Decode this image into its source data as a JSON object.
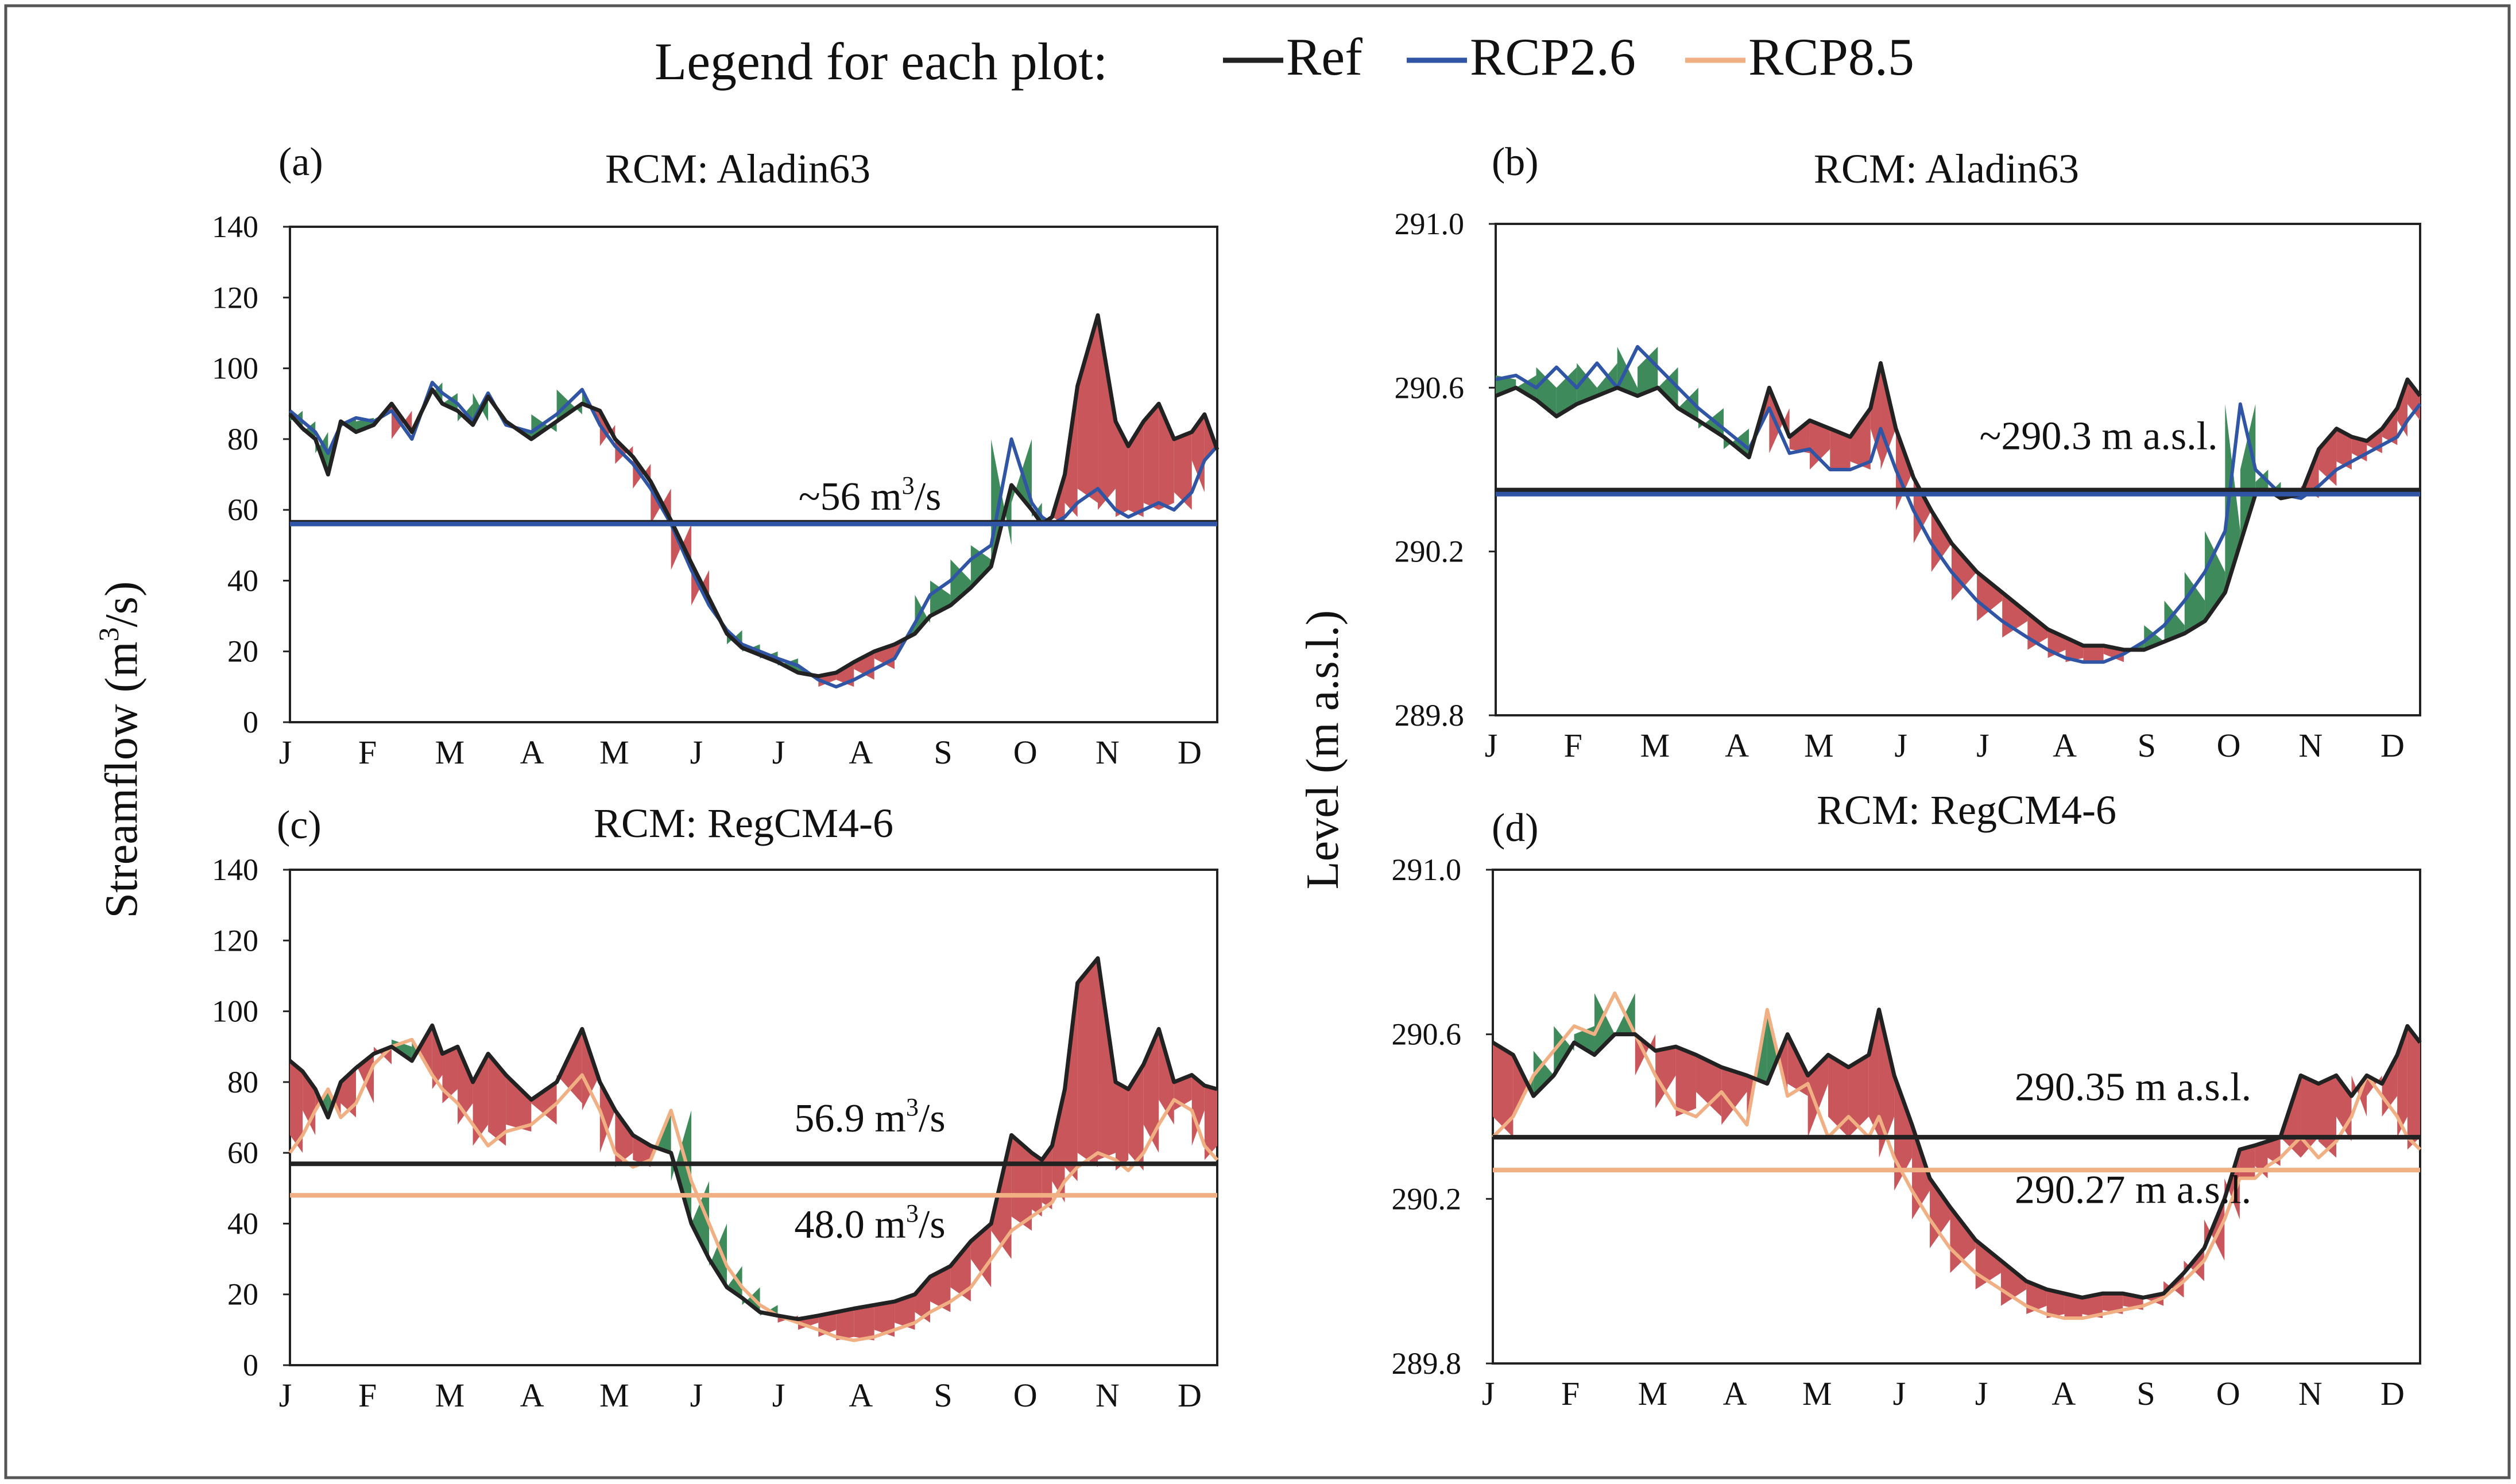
{
  "legend": {
    "title": "Legend for each plot:",
    "entries": [
      {
        "label": "Ref",
        "color": "#222222"
      },
      {
        "label": "RCP2.6",
        "color": "#2f55a4"
      },
      {
        "label": "RCP8.5",
        "color": "#f1b084"
      }
    ]
  },
  "y_labels": {
    "streamflow_main": "Streamflow (m",
    "streamflow_sup": "3",
    "streamflow_end": "/s)",
    "level": "Level (m a.s.l.)"
  },
  "months": [
    "J",
    "F",
    "M",
    "A",
    "M",
    "J",
    "J",
    "A",
    "S",
    "O",
    "N",
    "D"
  ],
  "fill_colors": {
    "above": "#c8565a",
    "below": "#3f8a5b"
  },
  "chart_data": [
    {
      "id": "a",
      "panel_label": "(a)",
      "title": "RCM: Aladin63",
      "type": "line",
      "quantity": "streamflow",
      "ylim": [
        0,
        140
      ],
      "yticks": [
        "0",
        "20",
        "40",
        "60",
        "80",
        "100",
        "120",
        "140"
      ],
      "xlabel": "",
      "ylabel": "Streamflow (m3/s)",
      "scenario": "RCP2.6",
      "annotations": [
        {
          "pre": "~56 m",
          "sup": "3",
          "post": "/s",
          "y": 60
        }
      ],
      "hlines": [
        {
          "series": "Ref",
          "value": 56.5
        },
        {
          "series": "RCP2.6",
          "value": 56.0
        }
      ],
      "x": [
        0,
        5,
        10,
        15,
        20,
        26,
        33,
        40,
        48,
        56,
        60,
        66,
        72,
        78,
        85,
        95,
        105,
        115,
        122,
        128,
        135,
        142,
        150,
        158,
        165,
        172,
        178,
        185,
        192,
        200,
        208,
        215,
        222,
        230,
        238,
        246,
        252,
        260,
        268,
        276,
        284,
        292,
        296,
        300,
        305,
        310,
        318,
        325,
        330,
        336,
        342,
        348,
        355,
        360,
        365
      ],
      "series": [
        {
          "name": "Ref",
          "values": [
            87,
            83,
            80,
            70,
            85,
            82,
            84,
            90,
            82,
            94,
            90,
            88,
            84,
            92,
            85,
            80,
            85,
            90,
            88,
            80,
            75,
            68,
            57,
            45,
            35,
            25,
            21,
            19,
            17,
            14,
            13,
            14,
            17,
            20,
            22,
            25,
            30,
            33,
            38,
            44,
            67,
            60,
            56,
            58,
            70,
            95,
            115,
            85,
            78,
            85,
            90,
            80,
            82,
            87,
            77
          ]
        },
        {
          "name": "RCP2.6",
          "values": [
            88,
            85,
            82,
            76,
            84,
            86,
            85,
            88,
            80,
            96,
            93,
            90,
            85,
            93,
            84,
            82,
            87,
            94,
            84,
            78,
            73,
            66,
            56,
            43,
            33,
            26,
            22,
            20,
            18,
            16,
            12,
            10,
            12,
            15,
            18,
            28,
            36,
            40,
            46,
            50,
            80,
            62,
            58,
            56,
            58,
            62,
            66,
            60,
            58,
            60,
            62,
            60,
            65,
            74,
            78
          ]
        }
      ]
    },
    {
      "id": "b",
      "panel_label": "(b)",
      "title": "RCM: Aladin63",
      "type": "line",
      "quantity": "level",
      "ylim": [
        289.8,
        291.0
      ],
      "yticks": [
        "289.8",
        "290.2",
        "290.6",
        "291.0"
      ],
      "xlabel": "",
      "ylabel": "Level (m a.s.l.)",
      "scenario": "RCP2.6",
      "annotations": [
        {
          "pre": "~290.3 m a.s.l.",
          "sup": "",
          "post": "",
          "y": 290.45
        }
      ],
      "hlines": [
        {
          "series": "Ref",
          "value": 290.35
        },
        {
          "series": "RCP2.6",
          "value": 290.34
        }
      ],
      "x": [
        0,
        8,
        16,
        24,
        32,
        40,
        48,
        56,
        64,
        72,
        80,
        90,
        100,
        108,
        116,
        124,
        132,
        140,
        148,
        152,
        158,
        165,
        172,
        180,
        190,
        200,
        210,
        218,
        225,
        232,
        240,
        248,
        256,
        264,
        272,
        280,
        288,
        294,
        300,
        305,
        310,
        318,
        325,
        332,
        338,
        344,
        350,
        356,
        360,
        365
      ],
      "series": [
        {
          "name": "Ref",
          "values": [
            290.58,
            290.6,
            290.57,
            290.53,
            290.56,
            290.58,
            290.6,
            290.58,
            290.6,
            290.55,
            290.52,
            290.48,
            290.43,
            290.6,
            290.48,
            290.52,
            290.5,
            290.48,
            290.55,
            290.66,
            290.5,
            290.38,
            290.3,
            290.22,
            290.15,
            290.1,
            290.05,
            290.01,
            289.99,
            289.97,
            289.97,
            289.96,
            289.96,
            289.98,
            290.0,
            290.03,
            290.1,
            290.22,
            290.34,
            290.35,
            290.33,
            290.34,
            290.45,
            290.5,
            290.48,
            290.47,
            290.5,
            290.55,
            290.62,
            290.58
          ]
        },
        {
          "name": "RCP2.6",
          "values": [
            290.62,
            290.63,
            290.6,
            290.65,
            290.6,
            290.66,
            290.6,
            290.7,
            290.65,
            290.6,
            290.55,
            290.5,
            290.45,
            290.55,
            290.44,
            290.45,
            290.4,
            290.4,
            290.42,
            290.5,
            290.4,
            290.3,
            290.22,
            290.15,
            290.08,
            290.03,
            289.99,
            289.96,
            289.94,
            289.93,
            289.93,
            289.95,
            289.98,
            290.02,
            290.08,
            290.15,
            290.25,
            290.56,
            290.4,
            290.37,
            290.34,
            290.33,
            290.36,
            290.4,
            290.42,
            290.44,
            290.46,
            290.48,
            290.52,
            290.56
          ]
        }
      ]
    },
    {
      "id": "c",
      "panel_label": "(c)",
      "title": "RCM: RegCM4-6",
      "type": "line",
      "quantity": "streamflow",
      "ylim": [
        0,
        140
      ],
      "yticks": [
        "0",
        "20",
        "40",
        "60",
        "80",
        "100",
        "120",
        "140"
      ],
      "xlabel": "",
      "ylabel": "Streamflow (m3/s)",
      "scenario": "RCP8.5",
      "annotations": [
        {
          "pre": "56.9 m",
          "sup": "3",
          "post": "/s",
          "y": 66
        },
        {
          "pre": "48.0 m",
          "sup": "3",
          "post": "/s",
          "y": 36
        }
      ],
      "hlines": [
        {
          "series": "Ref",
          "value": 56.9
        },
        {
          "series": "RCP8.5",
          "value": 48.0
        }
      ],
      "x": [
        0,
        5,
        10,
        15,
        20,
        26,
        33,
        40,
        48,
        56,
        60,
        66,
        72,
        78,
        85,
        95,
        105,
        115,
        122,
        128,
        135,
        142,
        150,
        158,
        165,
        172,
        178,
        185,
        192,
        200,
        208,
        215,
        222,
        230,
        238,
        246,
        252,
        260,
        268,
        276,
        284,
        292,
        296,
        300,
        305,
        310,
        318,
        325,
        330,
        336,
        342,
        348,
        355,
        360,
        365
      ],
      "series": [
        {
          "name": "Ref",
          "values": [
            86,
            83,
            78,
            70,
            80,
            84,
            88,
            90,
            86,
            96,
            88,
            90,
            80,
            88,
            82,
            75,
            80,
            95,
            80,
            72,
            65,
            62,
            60,
            40,
            30,
            22,
            19,
            15,
            14,
            13,
            14,
            15,
            16,
            17,
            18,
            20,
            25,
            28,
            35,
            40,
            65,
            60,
            58,
            62,
            78,
            108,
            115,
            80,
            78,
            85,
            95,
            80,
            82,
            79,
            78
          ]
        },
        {
          "name": "RCP8.5",
          "values": [
            60,
            65,
            72,
            78,
            70,
            74,
            85,
            90,
            92,
            82,
            78,
            74,
            68,
            62,
            66,
            68,
            74,
            82,
            72,
            60,
            56,
            58,
            72,
            52,
            40,
            28,
            22,
            17,
            14,
            12,
            10,
            8,
            7,
            8,
            10,
            12,
            15,
            18,
            22,
            30,
            38,
            42,
            44,
            46,
            52,
            56,
            60,
            58,
            55,
            60,
            68,
            75,
            72,
            62,
            58
          ]
        }
      ]
    },
    {
      "id": "d",
      "panel_label": "(d)",
      "title": "RCM: RegCM4-6",
      "type": "line",
      "quantity": "level",
      "ylim": [
        289.8,
        291.0
      ],
      "yticks": [
        "289.8",
        "290.2",
        "290.6",
        "291.0"
      ],
      "xlabel": "",
      "ylabel": "Level (m a.s.l.)",
      "scenario": "RCP8.5",
      "annotations": [
        {
          "pre": "290.35 m a.s.l.",
          "sup": "",
          "post": "",
          "y": 290.44
        },
        {
          "pre": "290.27 m a.s.l.",
          "sup": "",
          "post": "",
          "y": 290.19
        }
      ],
      "hlines": [
        {
          "series": "Ref",
          "value": 290.35
        },
        {
          "series": "RCP8.5",
          "value": 290.27
        }
      ],
      "x": [
        0,
        8,
        16,
        24,
        32,
        40,
        48,
        56,
        64,
        72,
        80,
        90,
        100,
        108,
        116,
        124,
        132,
        140,
        148,
        152,
        158,
        165,
        172,
        180,
        190,
        200,
        210,
        218,
        225,
        232,
        240,
        248,
        256,
        264,
        272,
        280,
        288,
        294,
        300,
        305,
        310,
        318,
        325,
        332,
        338,
        344,
        350,
        356,
        360,
        365
      ],
      "series": [
        {
          "name": "Ref",
          "values": [
            290.58,
            290.55,
            290.45,
            290.5,
            290.58,
            290.55,
            290.6,
            290.6,
            290.56,
            290.57,
            290.55,
            290.52,
            290.5,
            290.48,
            290.6,
            290.5,
            290.55,
            290.52,
            290.55,
            290.66,
            290.5,
            290.38,
            290.25,
            290.18,
            290.1,
            290.05,
            290.0,
            289.98,
            289.97,
            289.96,
            289.97,
            289.97,
            289.96,
            289.97,
            290.02,
            290.08,
            290.2,
            290.32,
            290.33,
            290.34,
            290.35,
            290.5,
            290.48,
            290.5,
            290.45,
            290.5,
            290.48,
            290.55,
            290.62,
            290.58
          ]
        },
        {
          "name": "RCP8.5",
          "values": [
            290.35,
            290.4,
            290.5,
            290.56,
            290.62,
            290.6,
            290.7,
            290.6,
            290.5,
            290.42,
            290.4,
            290.46,
            290.38,
            290.66,
            290.45,
            290.48,
            290.35,
            290.4,
            290.35,
            290.4,
            290.3,
            290.22,
            290.15,
            290.08,
            290.02,
            289.98,
            289.94,
            289.92,
            289.91,
            289.91,
            289.92,
            289.93,
            289.94,
            289.96,
            290.0,
            290.05,
            290.15,
            290.25,
            290.25,
            290.28,
            290.3,
            290.35,
            290.3,
            290.34,
            290.4,
            290.5,
            290.45,
            290.4,
            290.35,
            290.32
          ]
        }
      ]
    }
  ]
}
